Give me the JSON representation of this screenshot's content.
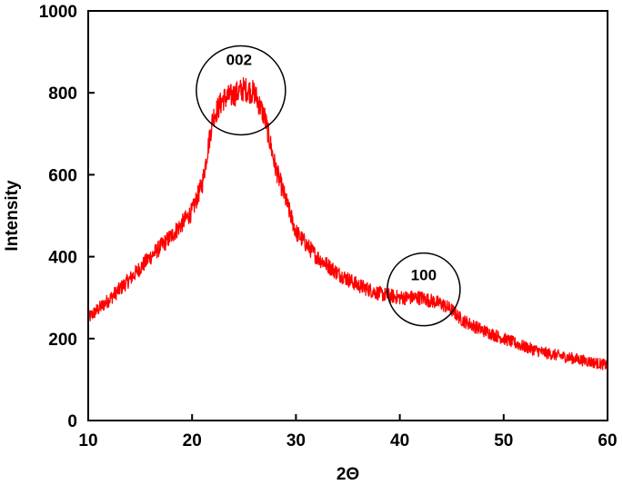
{
  "chart_data": {
    "type": "line",
    "title": "",
    "xlabel": "2Θ",
    "ylabel": "Intensity",
    "xlim": [
      10,
      60
    ],
    "ylim": [
      0,
      1000
    ],
    "x_ticks": [
      10,
      20,
      30,
      40,
      50,
      60
    ],
    "y_ticks": [
      0,
      200,
      400,
      600,
      800,
      1000
    ],
    "x_tick_labels": [
      "10",
      "20",
      "30",
      "40",
      "50",
      "60"
    ],
    "y_tick_labels": [
      "0",
      "200",
      "400",
      "600",
      "800",
      "1000"
    ],
    "grid": false,
    "legend": "none",
    "series": [
      {
        "color": "#ff0000",
        "x": [
          10,
          12,
          14,
          16,
          18,
          20,
          21,
          22,
          23,
          24,
          25,
          26,
          27,
          28,
          29,
          30,
          32,
          34,
          36,
          38,
          40,
          42,
          44,
          45,
          46,
          48,
          50,
          52,
          54,
          56,
          58,
          60
        ],
        "y": [
          250,
          295,
          345,
          400,
          450,
          510,
          580,
          740,
          785,
          795,
          810,
          800,
          740,
          620,
          540,
          460,
          400,
          360,
          330,
          310,
          300,
          300,
          285,
          270,
          245,
          220,
          200,
          180,
          165,
          155,
          145,
          135
        ]
      }
    ],
    "annotations": [
      {
        "label": "002",
        "x": 24.7,
        "y": 806,
        "shape": "circle",
        "color": "#000000"
      },
      {
        "label": "100",
        "x": 42.3,
        "y": 320,
        "shape": "circle",
        "color": "#000000"
      }
    ]
  }
}
